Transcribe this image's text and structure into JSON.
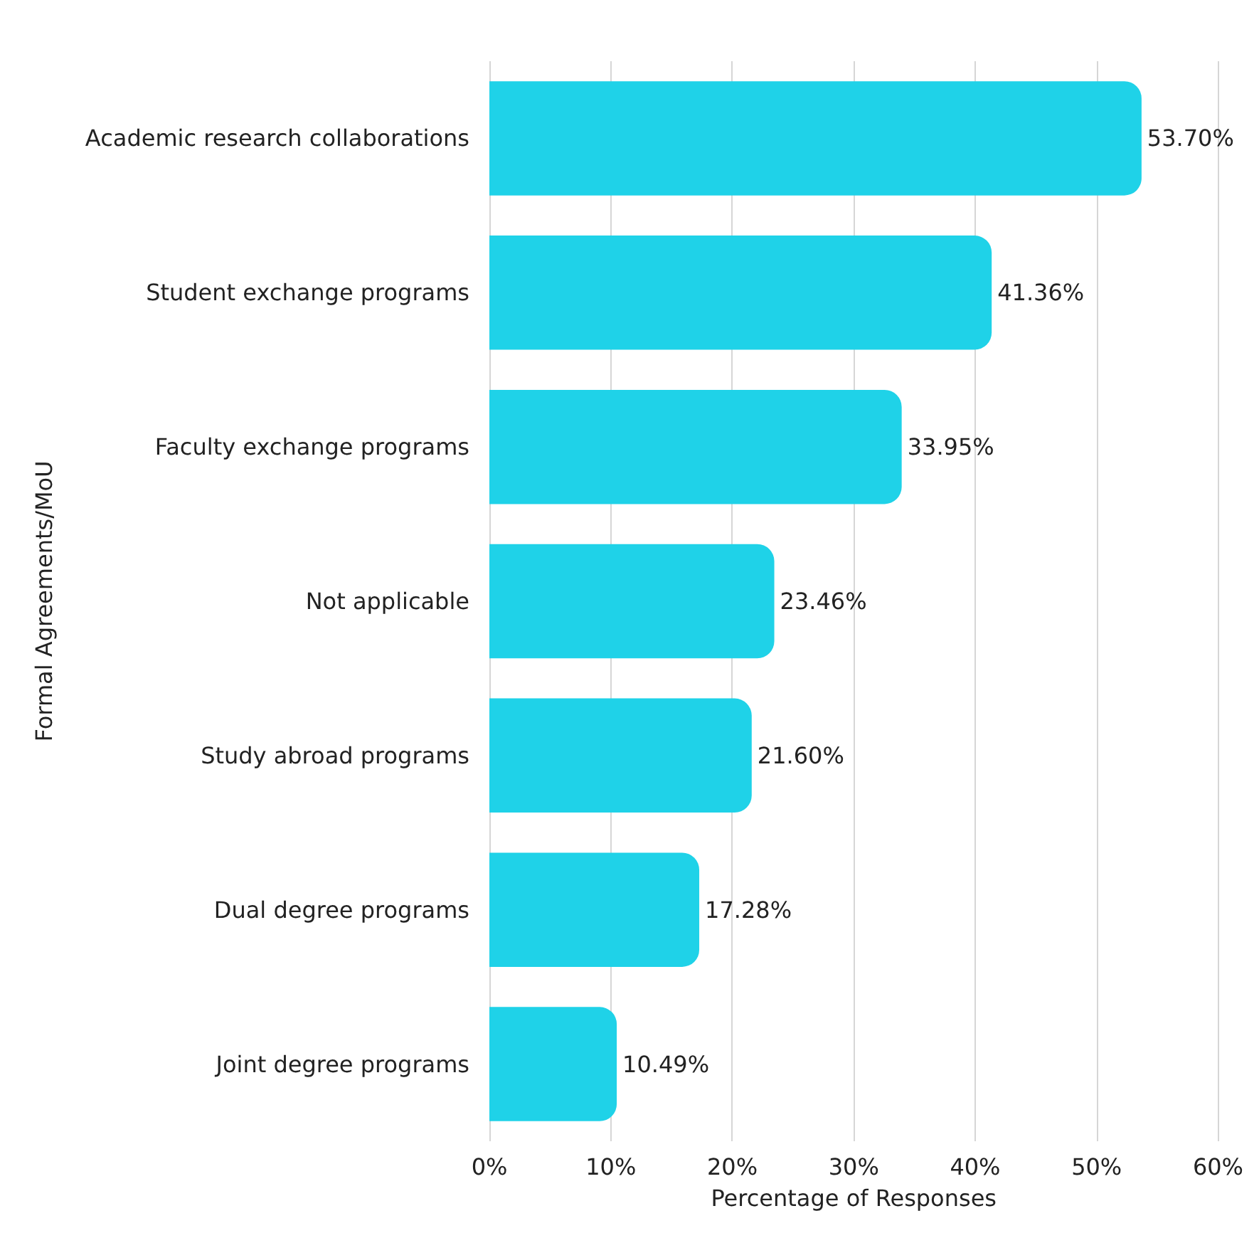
{
  "chart_data": {
    "type": "bar",
    "orientation": "horizontal",
    "xlabel": "Percentage of Responses",
    "ylabel": "Formal Agreements/MoU",
    "categories": [
      "Academic research collaborations",
      "Student exchange programs",
      "Faculty exchange programs",
      "Not applicable",
      "Study abroad programs",
      "Dual degree programs",
      "Joint degree programs"
    ],
    "values": [
      53.7,
      41.36,
      33.95,
      23.46,
      21.6,
      17.28,
      10.49
    ],
    "value_labels": [
      "53.70%",
      "41.36%",
      "33.95%",
      "23.46%",
      "21.60%",
      "17.28%",
      "10.49%"
    ],
    "color": "#1fd2e8",
    "xlim": [
      0,
      60
    ],
    "xticks": [
      {
        "value": 0,
        "label": "0%"
      },
      {
        "value": 10,
        "label": "10%"
      },
      {
        "value": 20,
        "label": "20%"
      },
      {
        "value": 30,
        "label": "30%"
      },
      {
        "value": 40,
        "label": "40%"
      },
      {
        "value": 50,
        "label": "50%"
      },
      {
        "value": 60,
        "label": "60%"
      }
    ],
    "grid": "x"
  }
}
